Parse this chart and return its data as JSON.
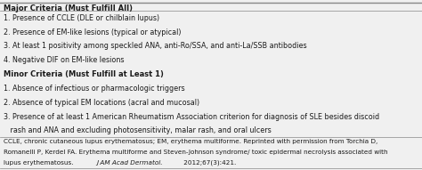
{
  "title": "Major Criteria (Must Fulfill All)",
  "minor_title": "Minor Criteria (Must Fulfill at Least 1)",
  "major_items": [
    "1. Presence of CCLE (DLE or chilblain lupus)",
    "2. Presence of EM-like lesions (typical or atypical)",
    "3. At least 1 positivity among speckled ANA, anti-Ro/SSA, and anti-La/SSB antibodies",
    "4. Negative DIF on EM-like lesions"
  ],
  "minor_items": [
    "1. Absence of infectious or pharmacologic triggers",
    "2. Absence of typical EM locations (acral and mucosal)",
    "3. Presence of at least 1 American Rheumatism Association criterion for diagnosis of SLE besides discoid",
    "   rash and ANA and excluding photosensitivity, malar rash, and oral ulcers"
  ],
  "footnote_line1": "CCLE, chronic cutaneous lupus erythematosus; EM, erythema multiforme. Reprinted with permission from Torchia D,",
  "footnote_line2": "Romanelli P, Kerdel FA. Erythema multiforme and Steven-Johnson syndrome/ toxic epidermal necrolysis associated with",
  "footnote_line3_pre": "lupus erythematosus. ",
  "footnote_line3_italic": "J AM Acad Dermatol.",
  "footnote_line3_post": " 2012;67(3):421.",
  "bg_color": "#f0f0f0",
  "text_color": "#1a1a1a",
  "line_color": "#888888",
  "title_fontsize": 6.0,
  "body_fontsize": 5.8,
  "footnote_fontsize": 5.2
}
